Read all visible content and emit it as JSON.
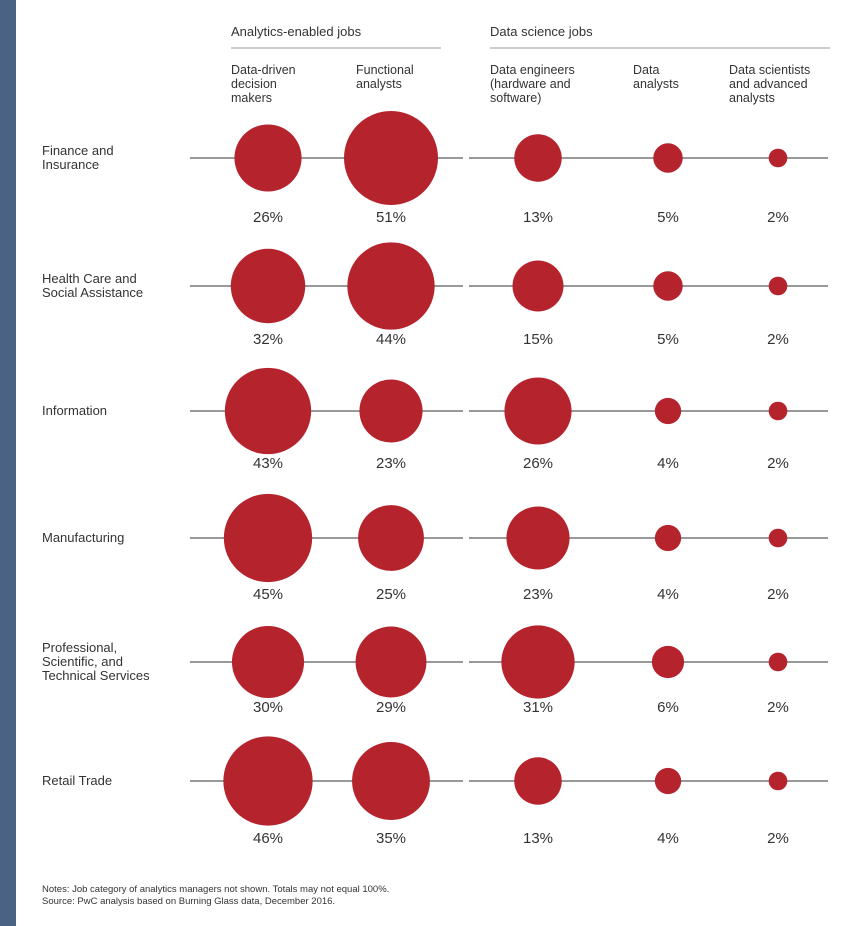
{
  "chart_data": {
    "type": "bubble-matrix",
    "groups": [
      {
        "label": "Analytics-enabled jobs",
        "columns": [
          0,
          1
        ]
      },
      {
        "label": "Data science jobs",
        "columns": [
          2,
          3,
          4
        ]
      }
    ],
    "columns": [
      {
        "label_lines": [
          "Data-driven",
          "decision",
          "makers"
        ]
      },
      {
        "label_lines": [
          "Functional",
          "analysts"
        ]
      },
      {
        "label_lines": [
          "Data engineers",
          "(hardware and",
          "software)"
        ]
      },
      {
        "label_lines": [
          "Data",
          "analysts"
        ]
      },
      {
        "label_lines": [
          "Data scientists",
          "and advanced",
          "analysts"
        ]
      }
    ],
    "rows": [
      {
        "label_lines": [
          "Finance and",
          "Insurance"
        ],
        "values": [
          26,
          51,
          13,
          5,
          2
        ]
      },
      {
        "label_lines": [
          "Health Care and",
          "Social Assistance"
        ],
        "values": [
          32,
          44,
          15,
          5,
          2
        ]
      },
      {
        "label_lines": [
          "Information"
        ],
        "values": [
          43,
          23,
          26,
          4,
          2
        ]
      },
      {
        "label_lines": [
          "Manufacturing"
        ],
        "values": [
          45,
          25,
          23,
          4,
          2
        ]
      },
      {
        "label_lines": [
          "Professional,",
          "Scientific, and",
          "Technical Services"
        ],
        "values": [
          30,
          29,
          31,
          6,
          2
        ]
      },
      {
        "label_lines": [
          "Retail Trade"
        ],
        "values": [
          46,
          35,
          13,
          4,
          2
        ]
      }
    ],
    "value_suffix": "%",
    "bubble_color": "#b5232d",
    "line_color": "#999999"
  },
  "notes": [
    "Notes: Job category of analytics managers not shown. Totals may not equal 100%.",
    "Source: PwC analysis based on Burning Glass data, December 2016."
  ]
}
